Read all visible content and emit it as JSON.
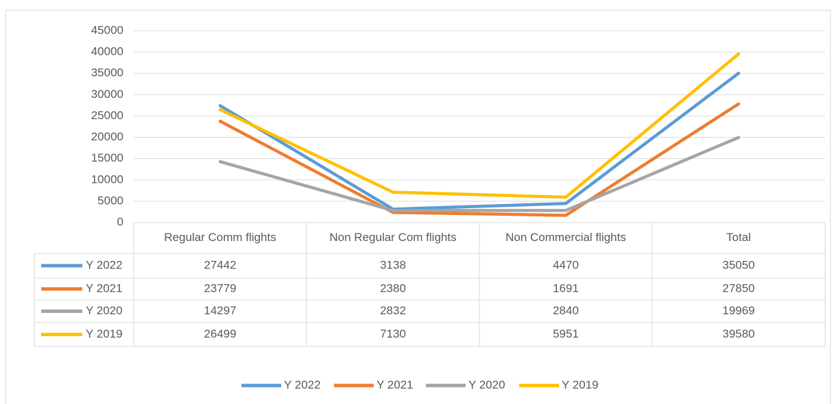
{
  "chart_data": {
    "type": "line",
    "categories": [
      "Regular Comm flights",
      "Non Regular Com flights",
      "Non Commercial flights",
      "Total"
    ],
    "series": [
      {
        "name": "Y 2022",
        "color": "#5b9bd5",
        "values": [
          27442,
          3138,
          4470,
          35050
        ]
      },
      {
        "name": "Y 2021",
        "color": "#ed7d31",
        "values": [
          23779,
          2380,
          1691,
          27850
        ]
      },
      {
        "name": "Y 2020",
        "color": "#a5a5a5",
        "values": [
          14297,
          2832,
          2840,
          19969
        ]
      },
      {
        "name": "Y 2019",
        "color": "#ffc000",
        "values": [
          26499,
          7130,
          5951,
          39580
        ]
      }
    ],
    "ylim": [
      0,
      45000
    ],
    "yticks": [
      0,
      5000,
      10000,
      15000,
      20000,
      25000,
      30000,
      35000,
      40000,
      45000
    ],
    "grid": true,
    "legend": "bottom",
    "data_table": true
  }
}
